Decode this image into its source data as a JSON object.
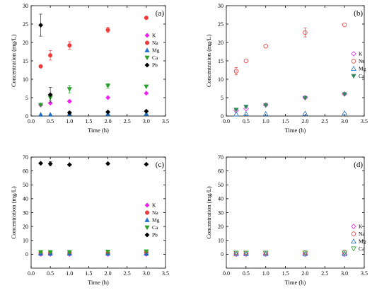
{
  "chart_data": [
    {
      "type": "scatter",
      "panel_label": "(a)",
      "xlabel": "Time (h)",
      "ylabel": "Concentration (mg/L)",
      "xlim": [
        0,
        3.5
      ],
      "ylim": [
        0,
        30
      ],
      "xticks": [
        "0.0",
        "0.5",
        "1.0",
        "1.5",
        "2.0",
        "2.5",
        "3.0",
        "3.5"
      ],
      "yticks": [
        "0",
        "5",
        "10",
        "15",
        "20",
        "25",
        "30"
      ],
      "legend": "right",
      "series": [
        {
          "name": "K",
          "marker": "diamond-filled",
          "color": "#ee22ee",
          "x": [
            0.25,
            0.5,
            1.0,
            2.0,
            3.0
          ],
          "y": [
            3.0,
            3.5,
            4.0,
            5.0,
            6.2
          ],
          "err": [
            0,
            0,
            0.3,
            0,
            0
          ]
        },
        {
          "name": "Na",
          "marker": "circle-filled",
          "color": "#ee3b3b",
          "x": [
            0.25,
            0.5,
            1.0,
            2.0,
            3.0
          ],
          "y": [
            13.5,
            16.5,
            19.2,
            23.4,
            26.7
          ],
          "err": [
            0,
            1.3,
            1.0,
            0.7,
            0.3
          ]
        },
        {
          "name": "Mg",
          "marker": "triangle-up-filled",
          "color": "#1e6fc4",
          "x": [
            0.25,
            0.5,
            1.0,
            2.0,
            3.0
          ],
          "y": [
            0.4,
            0.4,
            0.6,
            0.6,
            0.6
          ],
          "err": [
            0,
            0,
            0,
            0,
            0
          ]
        },
        {
          "name": "Ca",
          "marker": "triangle-down-filled",
          "color": "#2ca02c",
          "x": [
            0.25,
            0.5,
            1.0,
            2.0,
            3.0
          ],
          "y": [
            3.0,
            5.0,
            7.3,
            8.2,
            8.0
          ],
          "err": [
            0,
            0.8,
            1.0,
            0.6,
            0
          ]
        },
        {
          "name": "Pb",
          "marker": "diamond-filled",
          "color": "#000000",
          "x": [
            0.25,
            0.5,
            1.0,
            2.0,
            3.0
          ],
          "y": [
            24.7,
            5.8,
            0.9,
            1.1,
            1.3
          ],
          "err": [
            3.0,
            2.0,
            0.3,
            0,
            0
          ]
        }
      ]
    },
    {
      "type": "scatter",
      "panel_label": "(b)",
      "xlabel": "Time (h)",
      "ylabel": "Concentration (mg/L)",
      "xlim": [
        0,
        3.5
      ],
      "ylim": [
        0,
        30
      ],
      "xticks": [
        "0.0",
        "0.5",
        "1.0",
        "1.5",
        "2.0",
        "2.5",
        "3.0",
        "3.5"
      ],
      "yticks": [
        "0",
        "5",
        "10",
        "15",
        "20",
        "25",
        "30"
      ],
      "legend": "right",
      "series": [
        {
          "name": "K",
          "marker": "diamond-open",
          "color": "#ee22ee",
          "x": [
            0.25,
            0.5,
            1.0,
            2.0,
            3.0
          ],
          "y": [
            1.5,
            2.0,
            3.0,
            5.0,
            6.0
          ],
          "err": [
            0,
            0,
            0,
            0,
            0
          ]
        },
        {
          "name": "Na",
          "marker": "circle-open",
          "color": "#ee3b3b",
          "x": [
            0.25,
            0.5,
            1.0,
            2.0,
            3.0
          ],
          "y": [
            12.2,
            15.0,
            19.0,
            22.7,
            24.8
          ],
          "err": [
            1.0,
            0,
            0,
            1.2,
            0
          ]
        },
        {
          "name": "Mg",
          "marker": "triangle-up-open",
          "color": "#1e6fc4",
          "x": [
            0.25,
            0.5,
            1.0,
            2.0,
            3.0
          ],
          "y": [
            0.5,
            0.6,
            0.6,
            0.7,
            0.8
          ],
          "err": [
            0,
            0,
            0,
            0,
            0
          ]
        },
        {
          "name": "Ca",
          "marker": "triangle-down-filled",
          "color": "#2e8b57",
          "x": [
            0.25,
            0.5,
            1.0,
            2.0,
            3.0
          ],
          "y": [
            1.7,
            2.5,
            2.9,
            4.9,
            5.9
          ],
          "err": [
            0,
            0,
            0,
            0,
            0
          ]
        }
      ]
    },
    {
      "type": "scatter",
      "panel_label": "(c)",
      "xlabel": "Time (h)",
      "ylabel": "Concentration (mg/L)",
      "xlim": [
        0,
        3.5
      ],
      "ylim": [
        -10,
        70
      ],
      "xticks": [
        "0.0",
        "0.5",
        "1.0",
        "1.5",
        "2.0",
        "2.5",
        "3.0",
        "3.5"
      ],
      "yticks": [
        "0",
        "10",
        "20",
        "30",
        "40",
        "50",
        "60",
        "70"
      ],
      "legend": "right",
      "series": [
        {
          "name": "K",
          "marker": "diamond-filled",
          "color": "#ee22ee",
          "x": [
            0.25,
            0.5,
            1.0,
            2.0,
            3.0
          ],
          "y": [
            0.0,
            0.0,
            0.0,
            0.0,
            0.0
          ],
          "err": [
            0,
            0,
            0,
            0,
            0
          ]
        },
        {
          "name": "Na",
          "marker": "circle-filled",
          "color": "#ee3b3b",
          "x": [
            0.25,
            0.5,
            1.0,
            2.0,
            3.0
          ],
          "y": [
            1.0,
            1.0,
            1.0,
            1.0,
            1.5
          ],
          "err": [
            0,
            0,
            0,
            0,
            0
          ]
        },
        {
          "name": "Mg",
          "marker": "triangle-up-filled",
          "color": "#1e6fc4",
          "x": [
            0.25,
            0.5,
            1.0,
            2.0,
            3.0
          ],
          "y": [
            0.5,
            0.5,
            0.5,
            0.5,
            0.5
          ],
          "err": [
            0,
            0,
            0,
            0,
            0
          ]
        },
        {
          "name": "Ca",
          "marker": "triangle-down-filled",
          "color": "#2ca02c",
          "x": [
            0.25,
            0.5,
            1.0,
            2.0,
            3.0
          ],
          "y": [
            1.5,
            1.5,
            1.5,
            1.8,
            2.0
          ],
          "err": [
            0,
            0,
            0,
            0,
            0
          ]
        },
        {
          "name": "Pb",
          "marker": "diamond-filled",
          "color": "#000000",
          "x": [
            0.25,
            0.5,
            1.0,
            2.0,
            3.0
          ],
          "y": [
            65.5,
            65.2,
            64.5,
            65.3,
            64.8
          ],
          "err": [
            0,
            1.5,
            0,
            0,
            0
          ]
        }
      ]
    },
    {
      "type": "scatter",
      "panel_label": "(d)",
      "xlabel": "Time (h)",
      "ylabel": "Concentration (mg/L)",
      "xlim": [
        0,
        3.5
      ],
      "ylim": [
        -10,
        70
      ],
      "xticks": [
        "0.0",
        "0.5",
        "1.0",
        "1.5",
        "2.0",
        "2.5",
        "3.0",
        "3.5"
      ],
      "yticks": [
        "0",
        "10",
        "20",
        "30",
        "40",
        "50",
        "60",
        "70"
      ],
      "legend": "right",
      "series": [
        {
          "name": "K",
          "marker": "diamond-open",
          "color": "#ee22ee",
          "x": [
            0.25,
            0.5,
            1.0,
            2.0,
            3.0
          ],
          "y": [
            0.0,
            0.0,
            0.0,
            0.0,
            0.0
          ],
          "err": [
            0,
            0,
            0,
            0,
            0
          ]
        },
        {
          "name": "Na",
          "marker": "circle-open",
          "color": "#ee3b3b",
          "x": [
            0.25,
            0.5,
            1.0,
            2.0,
            3.0
          ],
          "y": [
            1.0,
            1.0,
            1.0,
            1.2,
            1.5
          ],
          "err": [
            0,
            0,
            0,
            0,
            0
          ]
        },
        {
          "name": "Mg",
          "marker": "triangle-up-open",
          "color": "#1e6fc4",
          "x": [
            0.25,
            0.5,
            1.0,
            2.0,
            3.0
          ],
          "y": [
            0.3,
            0.3,
            0.3,
            0.3,
            0.3
          ],
          "err": [
            0,
            0,
            0,
            0,
            0
          ]
        },
        {
          "name": "Ca",
          "marker": "triangle-down-open",
          "color": "#2ca02c",
          "x": [
            0.25,
            0.5,
            1.0,
            2.0,
            3.0
          ],
          "y": [
            1.0,
            1.0,
            1.0,
            1.0,
            1.0
          ],
          "err": [
            0,
            0,
            0,
            0,
            0
          ]
        }
      ]
    }
  ]
}
